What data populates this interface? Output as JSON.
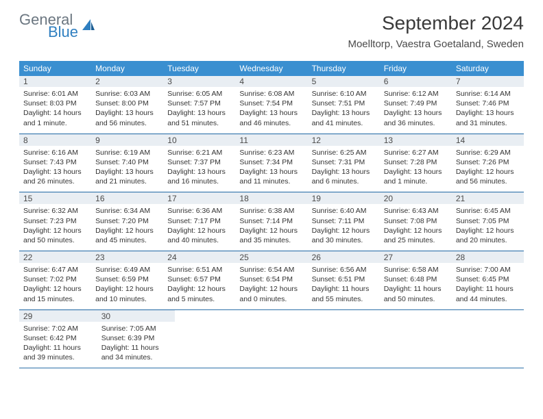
{
  "logo": {
    "general": "General",
    "blue": "Blue"
  },
  "title": "September 2024",
  "location": "Moelltorp, Vaestra Goetaland, Sweden",
  "weekdays": [
    "Sunday",
    "Monday",
    "Tuesday",
    "Wednesday",
    "Thursday",
    "Friday",
    "Saturday"
  ],
  "colors": {
    "header_bg": "#3a8fd0",
    "row_divider": "#2b6fa8",
    "daynum_bg": "#e9eef3",
    "text": "#333333"
  },
  "days": [
    {
      "n": "1",
      "sr": "Sunrise: 6:01 AM",
      "ss": "Sunset: 8:03 PM",
      "d1": "Daylight: 14 hours",
      "d2": "and 1 minute."
    },
    {
      "n": "2",
      "sr": "Sunrise: 6:03 AM",
      "ss": "Sunset: 8:00 PM",
      "d1": "Daylight: 13 hours",
      "d2": "and 56 minutes."
    },
    {
      "n": "3",
      "sr": "Sunrise: 6:05 AM",
      "ss": "Sunset: 7:57 PM",
      "d1": "Daylight: 13 hours",
      "d2": "and 51 minutes."
    },
    {
      "n": "4",
      "sr": "Sunrise: 6:08 AM",
      "ss": "Sunset: 7:54 PM",
      "d1": "Daylight: 13 hours",
      "d2": "and 46 minutes."
    },
    {
      "n": "5",
      "sr": "Sunrise: 6:10 AM",
      "ss": "Sunset: 7:51 PM",
      "d1": "Daylight: 13 hours",
      "d2": "and 41 minutes."
    },
    {
      "n": "6",
      "sr": "Sunrise: 6:12 AM",
      "ss": "Sunset: 7:49 PM",
      "d1": "Daylight: 13 hours",
      "d2": "and 36 minutes."
    },
    {
      "n": "7",
      "sr": "Sunrise: 6:14 AM",
      "ss": "Sunset: 7:46 PM",
      "d1": "Daylight: 13 hours",
      "d2": "and 31 minutes."
    },
    {
      "n": "8",
      "sr": "Sunrise: 6:16 AM",
      "ss": "Sunset: 7:43 PM",
      "d1": "Daylight: 13 hours",
      "d2": "and 26 minutes."
    },
    {
      "n": "9",
      "sr": "Sunrise: 6:19 AM",
      "ss": "Sunset: 7:40 PM",
      "d1": "Daylight: 13 hours",
      "d2": "and 21 minutes."
    },
    {
      "n": "10",
      "sr": "Sunrise: 6:21 AM",
      "ss": "Sunset: 7:37 PM",
      "d1": "Daylight: 13 hours",
      "d2": "and 16 minutes."
    },
    {
      "n": "11",
      "sr": "Sunrise: 6:23 AM",
      "ss": "Sunset: 7:34 PM",
      "d1": "Daylight: 13 hours",
      "d2": "and 11 minutes."
    },
    {
      "n": "12",
      "sr": "Sunrise: 6:25 AM",
      "ss": "Sunset: 7:31 PM",
      "d1": "Daylight: 13 hours",
      "d2": "and 6 minutes."
    },
    {
      "n": "13",
      "sr": "Sunrise: 6:27 AM",
      "ss": "Sunset: 7:28 PM",
      "d1": "Daylight: 13 hours",
      "d2": "and 1 minute."
    },
    {
      "n": "14",
      "sr": "Sunrise: 6:29 AM",
      "ss": "Sunset: 7:26 PM",
      "d1": "Daylight: 12 hours",
      "d2": "and 56 minutes."
    },
    {
      "n": "15",
      "sr": "Sunrise: 6:32 AM",
      "ss": "Sunset: 7:23 PM",
      "d1": "Daylight: 12 hours",
      "d2": "and 50 minutes."
    },
    {
      "n": "16",
      "sr": "Sunrise: 6:34 AM",
      "ss": "Sunset: 7:20 PM",
      "d1": "Daylight: 12 hours",
      "d2": "and 45 minutes."
    },
    {
      "n": "17",
      "sr": "Sunrise: 6:36 AM",
      "ss": "Sunset: 7:17 PM",
      "d1": "Daylight: 12 hours",
      "d2": "and 40 minutes."
    },
    {
      "n": "18",
      "sr": "Sunrise: 6:38 AM",
      "ss": "Sunset: 7:14 PM",
      "d1": "Daylight: 12 hours",
      "d2": "and 35 minutes."
    },
    {
      "n": "19",
      "sr": "Sunrise: 6:40 AM",
      "ss": "Sunset: 7:11 PM",
      "d1": "Daylight: 12 hours",
      "d2": "and 30 minutes."
    },
    {
      "n": "20",
      "sr": "Sunrise: 6:43 AM",
      "ss": "Sunset: 7:08 PM",
      "d1": "Daylight: 12 hours",
      "d2": "and 25 minutes."
    },
    {
      "n": "21",
      "sr": "Sunrise: 6:45 AM",
      "ss": "Sunset: 7:05 PM",
      "d1": "Daylight: 12 hours",
      "d2": "and 20 minutes."
    },
    {
      "n": "22",
      "sr": "Sunrise: 6:47 AM",
      "ss": "Sunset: 7:02 PM",
      "d1": "Daylight: 12 hours",
      "d2": "and 15 minutes."
    },
    {
      "n": "23",
      "sr": "Sunrise: 6:49 AM",
      "ss": "Sunset: 6:59 PM",
      "d1": "Daylight: 12 hours",
      "d2": "and 10 minutes."
    },
    {
      "n": "24",
      "sr": "Sunrise: 6:51 AM",
      "ss": "Sunset: 6:57 PM",
      "d1": "Daylight: 12 hours",
      "d2": "and 5 minutes."
    },
    {
      "n": "25",
      "sr": "Sunrise: 6:54 AM",
      "ss": "Sunset: 6:54 PM",
      "d1": "Daylight: 12 hours",
      "d2": "and 0 minutes."
    },
    {
      "n": "26",
      "sr": "Sunrise: 6:56 AM",
      "ss": "Sunset: 6:51 PM",
      "d1": "Daylight: 11 hours",
      "d2": "and 55 minutes."
    },
    {
      "n": "27",
      "sr": "Sunrise: 6:58 AM",
      "ss": "Sunset: 6:48 PM",
      "d1": "Daylight: 11 hours",
      "d2": "and 50 minutes."
    },
    {
      "n": "28",
      "sr": "Sunrise: 7:00 AM",
      "ss": "Sunset: 6:45 PM",
      "d1": "Daylight: 11 hours",
      "d2": "and 44 minutes."
    },
    {
      "n": "29",
      "sr": "Sunrise: 7:02 AM",
      "ss": "Sunset: 6:42 PM",
      "d1": "Daylight: 11 hours",
      "d2": "and 39 minutes."
    },
    {
      "n": "30",
      "sr": "Sunrise: 7:05 AM",
      "ss": "Sunset: 6:39 PM",
      "d1": "Daylight: 11 hours",
      "d2": "and 34 minutes."
    }
  ]
}
